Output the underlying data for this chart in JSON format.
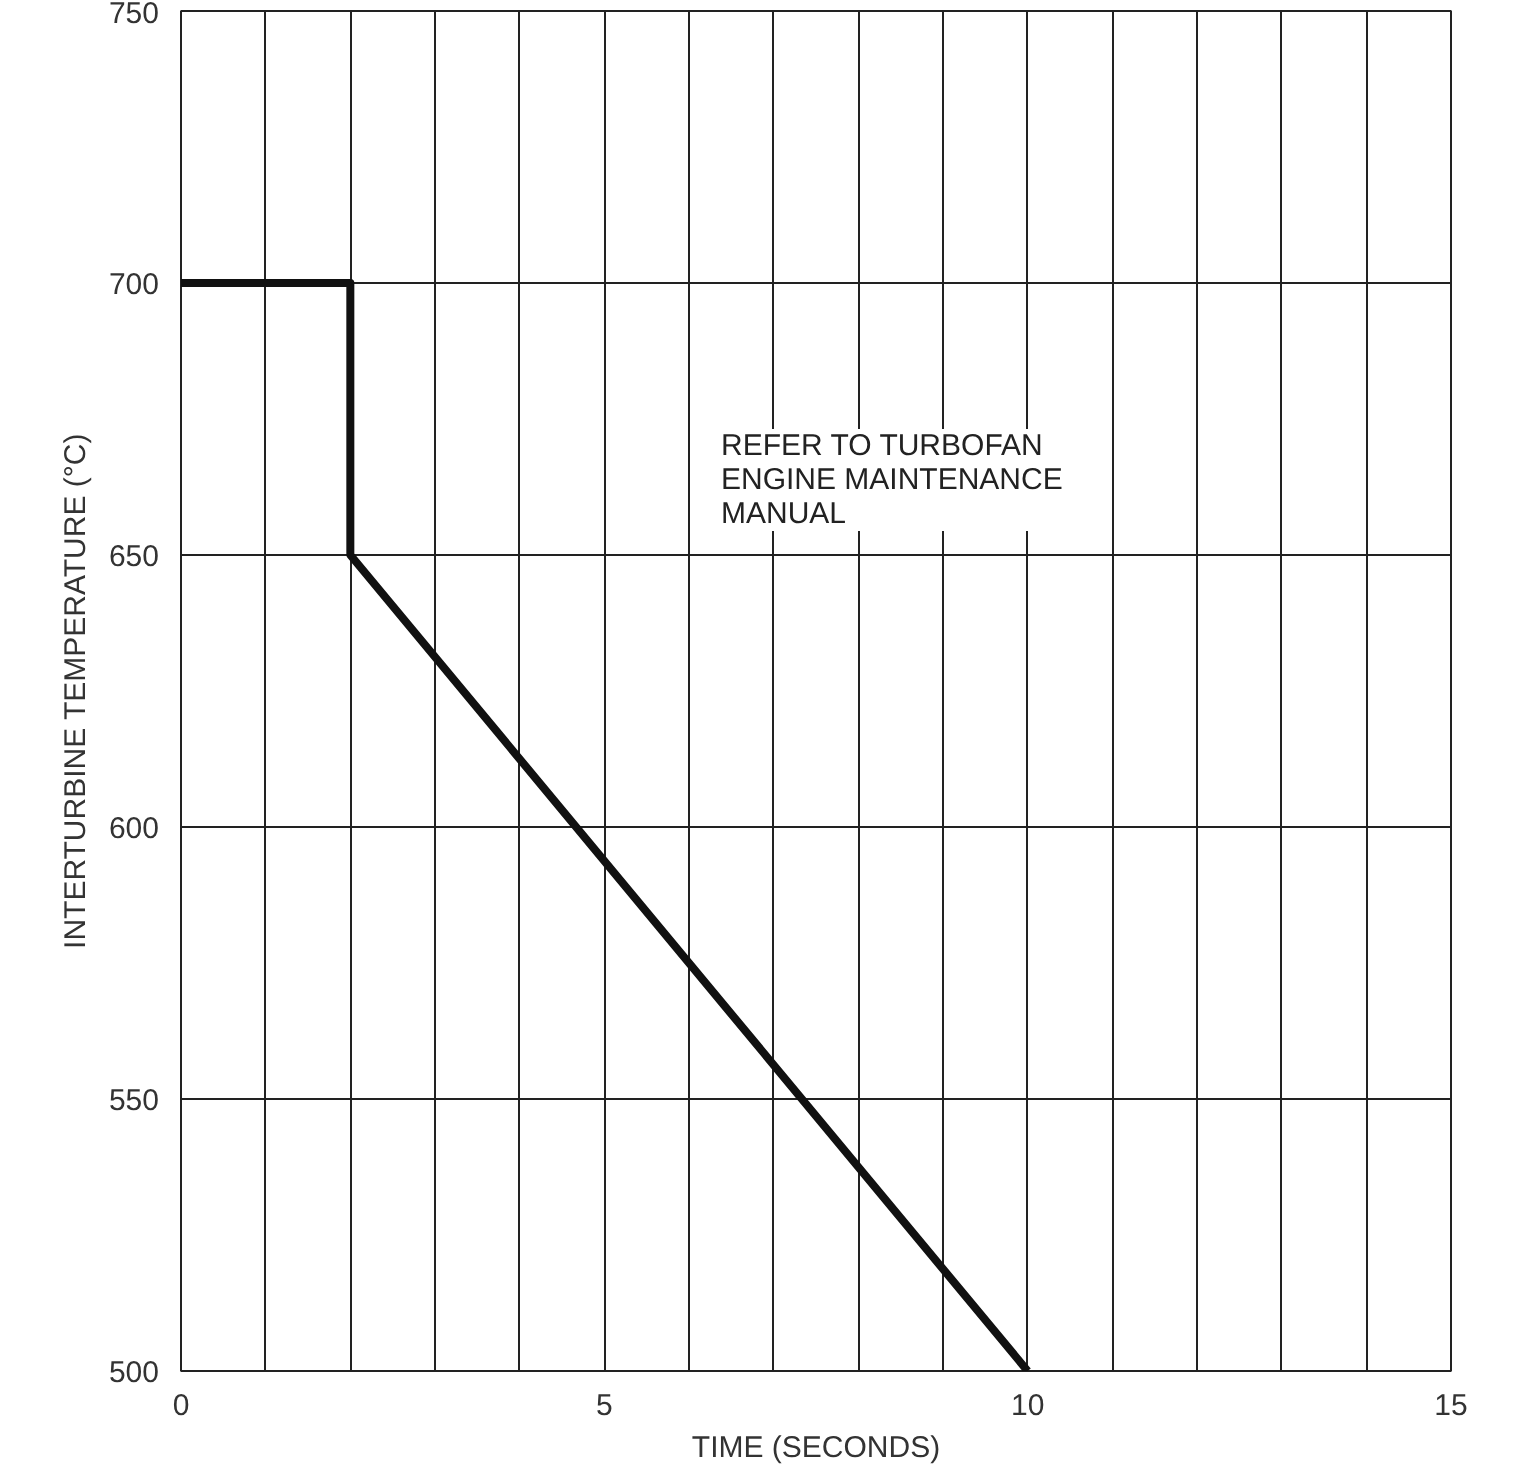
{
  "chart_data": {
    "type": "line",
    "xlabel": "TIME (SECONDS)",
    "ylabel": "INTERTURBINE TEMPERATURE (°C)",
    "x": [
      0,
      2,
      2,
      10
    ],
    "series": [
      {
        "color": "#111111",
        "values": [
          700,
          700,
          650,
          500
        ]
      }
    ],
    "xlim": [
      0,
      15
    ],
    "ylim": [
      500,
      750
    ],
    "xticks": [
      0,
      {
        "value": 1,
        "label": null
      },
      {
        "value": 2,
        "label": null
      },
      {
        "value": 3,
        "label": null
      },
      {
        "value": 4,
        "label": null
      },
      5,
      {
        "value": 6,
        "label": null
      },
      {
        "value": 7,
        "label": null
      },
      {
        "value": 8,
        "label": null
      },
      {
        "value": 9,
        "label": null
      },
      10,
      {
        "value": 11,
        "label": null
      },
      {
        "value": 12,
        "label": null
      },
      {
        "value": 13,
        "label": null
      },
      {
        "value": 14,
        "label": null
      },
      15
    ],
    "yticks": [
      500,
      550,
      600,
      650,
      700,
      750
    ],
    "grid": true,
    "line_style": "solid",
    "annotations": [
      "REFER TO TURBOFAN\nENGINE MAINTENANCE\nMANUAL"
    ]
  }
}
